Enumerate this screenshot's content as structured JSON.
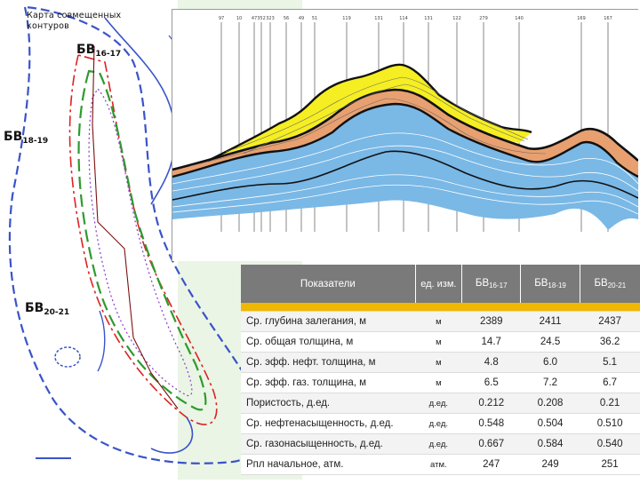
{
  "map": {
    "title_line1": "Карта совмещенных",
    "title_line2": "контуров",
    "labels": [
      {
        "main": "БВ",
        "sub": "16-17"
      },
      {
        "main": "БВ",
        "sub": "18-19"
      },
      {
        "main": "БВ",
        "sub": "20-21"
      }
    ]
  },
  "section": {
    "well_labels": [
      "97",
      "10",
      "47",
      "352",
      "323",
      "56",
      "49",
      "51",
      "119",
      "131",
      "114",
      "131",
      "122",
      "279",
      "140",
      "169",
      "167"
    ],
    "colors": {
      "yellow": "#f5ee22",
      "orange": "#e8a070",
      "blue": "#7ab8e6"
    }
  },
  "table": {
    "headers": {
      "param": "Показатели",
      "unit": "ед. изм.",
      "c1": {
        "main": "БВ",
        "sub": "16-17"
      },
      "c2": {
        "main": "БВ",
        "sub": "18-19"
      },
      "c3": {
        "main": "БВ",
        "sub": "20-21"
      }
    },
    "rows": [
      {
        "name": "Ср. глубина залегания, м",
        "unit": "м",
        "v1": "2389",
        "v2": "2411",
        "v3": "2437"
      },
      {
        "name": "Ср. общая толщина, м",
        "unit": "м",
        "v1": "14.7",
        "v2": "24.5",
        "v3": "36.2"
      },
      {
        "name": "Ср. эфф. нефт. толщина, м",
        "unit": "м",
        "v1": "4.8",
        "v2": "6.0",
        "v3": "5.1"
      },
      {
        "name": "Ср. эфф. газ. толщина, м",
        "unit": "м",
        "v1": "6.5",
        "v2": "7.2",
        "v3": "6.7"
      },
      {
        "name": "Пористость, д.ед.",
        "unit": "д.ед.",
        "v1": "0.212",
        "v2": "0.208",
        "v3": "0.21"
      },
      {
        "name": "Ср. нефтенасыщенность, д.ед.",
        "unit": "д.ед.",
        "v1": "0.548",
        "v2": "0.504",
        "v3": "0.510"
      },
      {
        "name": "Ср. газонасыщенность, д.ед.",
        "unit": "д.ед.",
        "v1": "0.667",
        "v2": "0.584",
        "v3": "0.540"
      },
      {
        "name": "Рпл начальное, атм.",
        "unit": "атм.",
        "v1": "247",
        "v2": "249",
        "v3": "251"
      }
    ]
  }
}
